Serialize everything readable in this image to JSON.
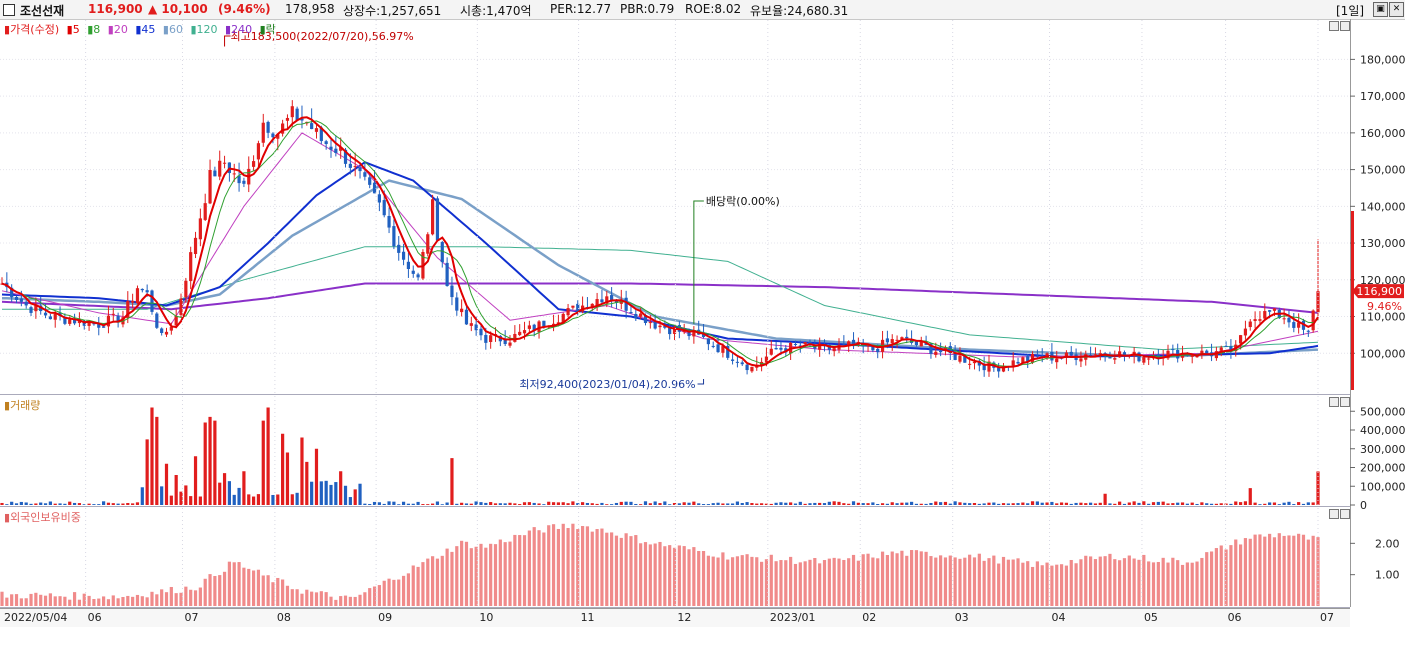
{
  "header": {
    "name": "조선선재",
    "price": "116,900",
    "change": "▲ 10,100",
    "change_pct": "(9.46%)",
    "volume": "178,958",
    "shares": "상장수:1,257,651",
    "market_cap": "시총:1,470억",
    "per": "PER:12.77",
    "pbr": "PBR:0.79",
    "roe": "ROE:8.02",
    "float": "유보율:24,680.31",
    "period": "[1일]"
  },
  "legend": {
    "price": "가격(수정)",
    "ma": [
      "5",
      "8",
      "20",
      "45",
      "60",
      "120",
      "240"
    ],
    "ex_div": "락",
    "volume": "거래량",
    "foreign": "외국인보유비중"
  },
  "colors": {
    "up": "#e11d1d",
    "down": "#2060c0",
    "ma5": "#e00000",
    "ma8": "#30a030",
    "ma20": "#c040c0",
    "ma45": "#1030d0",
    "ma60": "#7aa0c8",
    "ma120": "#40b090",
    "ma240": "#8a30c8",
    "foreign_bar": "#f08a8a"
  },
  "annotations": {
    "high": "최고183,500(2022/07/20),56.97%",
    "low": "최저92,400(2023/01/04),20.96%",
    "dividend": "배당락(0.00%)",
    "last_price": "116,900",
    "last_pct": "9.46%"
  },
  "chart_data": [
    {
      "type": "candlestick",
      "name": "price",
      "ylim": [
        90000,
        188000
      ],
      "yticks": [
        "100,000",
        "110,000",
        "120,000",
        "130,000",
        "140,000",
        "150,000",
        "160,000",
        "170,000",
        "180,000"
      ],
      "x_labels": [
        "2022/05/04",
        "06",
        "07",
        "08",
        "09",
        "10",
        "11",
        "12",
        "2023/01",
        "02",
        "03",
        "04",
        "05",
        "06",
        "07"
      ],
      "close_profile": [
        [
          0,
          119000
        ],
        [
          5,
          113000
        ],
        [
          10,
          110000
        ],
        [
          15,
          109000
        ],
        [
          20,
          108000
        ],
        [
          25,
          110000
        ],
        [
          28,
          118000
        ],
        [
          30,
          116000
        ],
        [
          33,
          104000
        ],
        [
          36,
          110000
        ],
        [
          40,
          132000
        ],
        [
          43,
          148000
        ],
        [
          46,
          152000
        ],
        [
          50,
          145000
        ],
        [
          54,
          163000
        ],
        [
          57,
          160000
        ],
        [
          60,
          165000
        ],
        [
          63,
          163000
        ],
        [
          66,
          158000
        ],
        [
          70,
          155000
        ],
        [
          74,
          148000
        ],
        [
          78,
          140000
        ],
        [
          82,
          128000
        ],
        [
          86,
          120000
        ],
        [
          89,
          140000
        ],
        [
          92,
          118000
        ],
        [
          96,
          108000
        ],
        [
          100,
          104000
        ],
        [
          105,
          104000
        ],
        [
          110,
          107000
        ],
        [
          115,
          110000
        ],
        [
          120,
          113000
        ],
        [
          125,
          116000
        ],
        [
          130,
          112000
        ],
        [
          135,
          108000
        ],
        [
          140,
          106000
        ],
        [
          145,
          104000
        ],
        [
          150,
          100000
        ],
        [
          155,
          96000
        ],
        [
          160,
          101000
        ],
        [
          165,
          102000
        ],
        [
          170,
          101000
        ],
        [
          175,
          102000
        ],
        [
          180,
          101000
        ],
        [
          185,
          104000
        ],
        [
          190,
          102000
        ],
        [
          195,
          100000
        ],
        [
          200,
          98000
        ],
        [
          205,
          96000
        ],
        [
          210,
          98000
        ],
        [
          215,
          99000
        ],
        [
          220,
          99000
        ],
        [
          225,
          100000
        ],
        [
          230,
          100000
        ],
        [
          235,
          99000
        ],
        [
          240,
          100000
        ],
        [
          245,
          100000
        ],
        [
          250,
          100000
        ],
        [
          255,
          101000
        ],
        [
          258,
          110000
        ],
        [
          262,
          111000
        ],
        [
          265,
          110000
        ],
        [
          268,
          107000
        ],
        [
          270,
          105000
        ],
        [
          272,
          116900
        ]
      ],
      "ma": {
        "ma20": [
          [
            0,
            117000
          ],
          [
            20,
            111000
          ],
          [
            35,
            108000
          ],
          [
            50,
            140000
          ],
          [
            62,
            160000
          ],
          [
            75,
            150000
          ],
          [
            90,
            126000
          ],
          [
            105,
            109000
          ],
          [
            125,
            113000
          ],
          [
            145,
            104000
          ],
          [
            170,
            101000
          ],
          [
            210,
            99000
          ],
          [
            250,
            100000
          ],
          [
            272,
            106000
          ]
        ],
        "ma45": [
          [
            0,
            116000
          ],
          [
            20,
            115000
          ],
          [
            34,
            113000
          ],
          [
            45,
            118000
          ],
          [
            55,
            130000
          ],
          [
            65,
            143000
          ],
          [
            75,
            152000
          ],
          [
            85,
            147000
          ],
          [
            100,
            130000
          ],
          [
            115,
            112000
          ],
          [
            130,
            110000
          ],
          [
            150,
            104000
          ],
          [
            180,
            102000
          ],
          [
            220,
            99000
          ],
          [
            262,
            100000
          ],
          [
            272,
            102000
          ]
        ],
        "ma60": [
          [
            0,
            115000
          ],
          [
            20,
            114000
          ],
          [
            34,
            113000
          ],
          [
            45,
            116000
          ],
          [
            60,
            132000
          ],
          [
            80,
            147000
          ],
          [
            95,
            142000
          ],
          [
            115,
            124000
          ],
          [
            135,
            110000
          ],
          [
            160,
            104000
          ],
          [
            200,
            101000
          ],
          [
            240,
            99000
          ],
          [
            272,
            101000
          ]
        ],
        "ma120": [
          [
            0,
            112000
          ],
          [
            30,
            112000
          ],
          [
            50,
            120000
          ],
          [
            75,
            129000
          ],
          [
            100,
            129000
          ],
          [
            130,
            128000
          ],
          [
            150,
            125000
          ],
          [
            170,
            113000
          ],
          [
            200,
            105000
          ],
          [
            240,
            101000
          ],
          [
            272,
            103000
          ]
        ],
        "ma240": [
          [
            0,
            114000
          ],
          [
            35,
            112000
          ],
          [
            55,
            115000
          ],
          [
            75,
            119000
          ],
          [
            100,
            119000
          ],
          [
            130,
            119000
          ],
          [
            170,
            118000
          ],
          [
            210,
            116000
          ],
          [
            250,
            114000
          ],
          [
            272,
            111000
          ]
        ]
      }
    },
    {
      "type": "bar",
      "name": "volume",
      "ylim": [
        0,
        560000
      ],
      "yticks": [
        "0",
        "100,000",
        "200,000",
        "300,000",
        "400,000",
        "500,000"
      ],
      "spikes": [
        [
          30,
          350000
        ],
        [
          31,
          520000
        ],
        [
          32,
          470000
        ],
        [
          34,
          220000
        ],
        [
          36,
          160000
        ],
        [
          40,
          260000
        ],
        [
          42,
          440000
        ],
        [
          43,
          470000
        ],
        [
          44,
          450000
        ],
        [
          46,
          170000
        ],
        [
          50,
          180000
        ],
        [
          54,
          450000
        ],
        [
          55,
          520000
        ],
        [
          58,
          380000
        ],
        [
          59,
          280000
        ],
        [
          62,
          360000
        ],
        [
          63,
          230000
        ],
        [
          65,
          300000
        ],
        [
          70,
          180000
        ],
        [
          93,
          250000
        ],
        [
          228,
          60000
        ],
        [
          258,
          90000
        ],
        [
          272,
          178958
        ]
      ]
    },
    {
      "type": "bar",
      "name": "foreign_ratio",
      "ylim": [
        0,
        3.0
      ],
      "yticks": [
        "1.00",
        "2.00"
      ],
      "profile": [
        [
          0,
          0.35
        ],
        [
          25,
          0.3
        ],
        [
          40,
          0.6
        ],
        [
          48,
          1.4
        ],
        [
          55,
          0.9
        ],
        [
          62,
          0.5
        ],
        [
          72,
          0.2
        ],
        [
          85,
          1.2
        ],
        [
          95,
          2.0
        ],
        [
          100,
          1.9
        ],
        [
          110,
          2.4
        ],
        [
          118,
          2.6
        ],
        [
          125,
          2.4
        ],
        [
          135,
          2.0
        ],
        [
          150,
          1.6
        ],
        [
          170,
          1.4
        ],
        [
          185,
          1.7
        ],
        [
          200,
          1.6
        ],
        [
          215,
          1.3
        ],
        [
          230,
          1.6
        ],
        [
          245,
          1.4
        ],
        [
          258,
          2.2
        ],
        [
          265,
          2.3
        ],
        [
          272,
          2.1
        ]
      ]
    }
  ]
}
